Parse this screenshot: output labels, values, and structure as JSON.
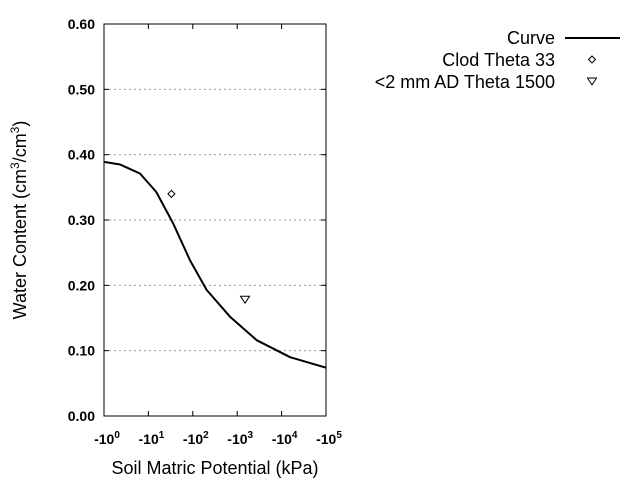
{
  "chart_data": {
    "type": "line",
    "title": "",
    "xlabel": "Soil Matric Potential (kPa)",
    "ylabel": "Water Content (cm3/cm3)",
    "ylabel_parts": {
      "pre": "Water Content (cm",
      "sup1": "3",
      "mid": "/cm",
      "sup2": "3",
      "post": ")"
    },
    "x_scale": "log",
    "xlim": [
      1,
      100000
    ],
    "ylim": [
      0.0,
      0.6
    ],
    "x_ticks": [
      {
        "value": 1,
        "base": "-10",
        "exp": "0"
      },
      {
        "value": 10,
        "base": "-10",
        "exp": "1"
      },
      {
        "value": 100,
        "base": "-10",
        "exp": "2"
      },
      {
        "value": 1000,
        "base": "-10",
        "exp": "3"
      },
      {
        "value": 10000,
        "base": "-10",
        "exp": "4"
      },
      {
        "value": 100000,
        "base": "-10",
        "exp": "5"
      }
    ],
    "y_ticks": [
      {
        "value": 0.0,
        "label": "0.00"
      },
      {
        "value": 0.1,
        "label": "0.10"
      },
      {
        "value": 0.2,
        "label": "0.20"
      },
      {
        "value": 0.3,
        "label": "0.30"
      },
      {
        "value": 0.4,
        "label": "0.40"
      },
      {
        "value": 0.5,
        "label": "0.50"
      },
      {
        "value": 0.6,
        "label": "0.60"
      }
    ],
    "grid": "horizontal dotted",
    "legend_position": "top-right outside",
    "series": [
      {
        "name": "Curve",
        "kind": "line",
        "color": "#000000",
        "x": [
          1,
          2.3,
          6.5,
          15,
          36,
          87,
          205,
          690,
          2750,
          15500,
          100000
        ],
        "y": [
          0.389,
          0.385,
          0.371,
          0.343,
          0.295,
          0.238,
          0.193,
          0.152,
          0.116,
          0.09,
          0.074
        ]
      },
      {
        "name": "Clod Theta 33",
        "kind": "marker",
        "marker": "diamond",
        "x": [
          33
        ],
        "y": [
          0.34
        ]
      },
      {
        "name": "<2 mm AD Theta 1500",
        "kind": "marker",
        "marker": "triangle-down",
        "x": [
          1500
        ],
        "y": [
          0.178
        ]
      }
    ]
  }
}
